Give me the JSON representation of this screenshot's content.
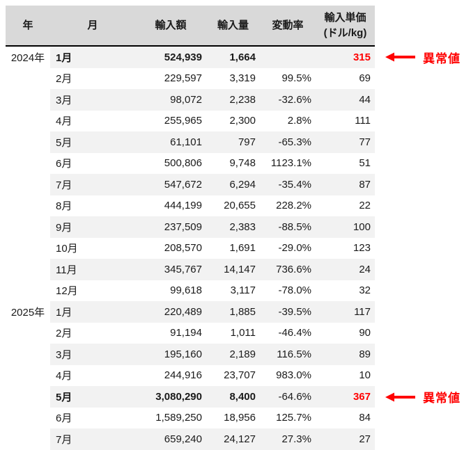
{
  "table": {
    "columns": [
      {
        "label": "年"
      },
      {
        "label": "月"
      },
      {
        "label": "輸入額"
      },
      {
        "label": "輸入量"
      },
      {
        "label": "変動率"
      },
      {
        "label": "輸入単価",
        "label_line2": "(ドル/kg)"
      }
    ],
    "rows": [
      {
        "year": "2024年",
        "month": "1月",
        "value": "524,939",
        "quantity": "1,664",
        "change": "",
        "unit_price": "315",
        "anomaly": true
      },
      {
        "year": "",
        "month": "2月",
        "value": "229,597",
        "quantity": "3,319",
        "change": "99.5%",
        "unit_price": "69",
        "anomaly": false
      },
      {
        "year": "",
        "month": "3月",
        "value": "98,072",
        "quantity": "2,238",
        "change": "-32.6%",
        "unit_price": "44",
        "anomaly": false
      },
      {
        "year": "",
        "month": "4月",
        "value": "255,965",
        "quantity": "2,300",
        "change": "2.8%",
        "unit_price": "111",
        "anomaly": false
      },
      {
        "year": "",
        "month": "5月",
        "value": "61,101",
        "quantity": "797",
        "change": "-65.3%",
        "unit_price": "77",
        "anomaly": false
      },
      {
        "year": "",
        "month": "6月",
        "value": "500,806",
        "quantity": "9,748",
        "change": "1123.1%",
        "unit_price": "51",
        "anomaly": false
      },
      {
        "year": "",
        "month": "7月",
        "value": "547,672",
        "quantity": "6,294",
        "change": "-35.4%",
        "unit_price": "87",
        "anomaly": false
      },
      {
        "year": "",
        "month": "8月",
        "value": "444,199",
        "quantity": "20,655",
        "change": "228.2%",
        "unit_price": "22",
        "anomaly": false
      },
      {
        "year": "",
        "month": "9月",
        "value": "237,509",
        "quantity": "2,383",
        "change": "-88.5%",
        "unit_price": "100",
        "anomaly": false
      },
      {
        "year": "",
        "month": "10月",
        "value": "208,570",
        "quantity": "1,691",
        "change": "-29.0%",
        "unit_price": "123",
        "anomaly": false
      },
      {
        "year": "",
        "month": "11月",
        "value": "345,767",
        "quantity": "14,147",
        "change": "736.6%",
        "unit_price": "24",
        "anomaly": false
      },
      {
        "year": "",
        "month": "12月",
        "value": "99,618",
        "quantity": "3,117",
        "change": "-78.0%",
        "unit_price": "32",
        "anomaly": false
      },
      {
        "year": "2025年",
        "month": "1月",
        "value": "220,489",
        "quantity": "1,885",
        "change": "-39.5%",
        "unit_price": "117",
        "anomaly": false
      },
      {
        "year": "",
        "month": "2月",
        "value": "91,194",
        "quantity": "1,011",
        "change": "-46.4%",
        "unit_price": "90",
        "anomaly": false
      },
      {
        "year": "",
        "month": "3月",
        "value": "195,160",
        "quantity": "2,189",
        "change": "116.5%",
        "unit_price": "89",
        "anomaly": false
      },
      {
        "year": "",
        "month": "4月",
        "value": "244,916",
        "quantity": "23,707",
        "change": "983.0%",
        "unit_price": "10",
        "anomaly": false
      },
      {
        "year": "",
        "month": "5月",
        "value": "3,080,290",
        "quantity": "8,400",
        "change": "-64.6%",
        "unit_price": "367",
        "anomaly": true
      },
      {
        "year": "",
        "month": "6月",
        "value": "1,589,250",
        "quantity": "18,956",
        "change": "125.7%",
        "unit_price": "84",
        "anomaly": false
      },
      {
        "year": "",
        "month": "7月",
        "value": "659,240",
        "quantity": "24,127",
        "change": "27.3%",
        "unit_price": "27",
        "anomaly": false
      }
    ]
  },
  "annotations": {
    "label": "異常値",
    "row_indices": [
      0,
      16
    ]
  },
  "colors": {
    "header_bg": "#d9d9d9",
    "alt_row_bg": "#f2f2f2",
    "anomaly_red": "#ff0000",
    "border": "#000000",
    "text": "#1a1a1a"
  },
  "chart_data": {
    "type": "table",
    "columns": [
      "年",
      "月",
      "輸入額",
      "輸入量",
      "変動率",
      "輸入単価(ドル/kg)"
    ],
    "rows": [
      [
        2024,
        1,
        524939,
        1664,
        null,
        315
      ],
      [
        null,
        2,
        229597,
        3319,
        "99.5%",
        69
      ],
      [
        null,
        3,
        98072,
        2238,
        "-32.6%",
        44
      ],
      [
        null,
        4,
        255965,
        2300,
        "2.8%",
        111
      ],
      [
        null,
        5,
        61101,
        797,
        "-65.3%",
        77
      ],
      [
        null,
        6,
        500806,
        9748,
        "1123.1%",
        51
      ],
      [
        null,
        7,
        547672,
        6294,
        "-35.4%",
        87
      ],
      [
        null,
        8,
        444199,
        20655,
        "228.2%",
        22
      ],
      [
        null,
        9,
        237509,
        2383,
        "-88.5%",
        100
      ],
      [
        null,
        10,
        208570,
        1691,
        "-29.0%",
        123
      ],
      [
        null,
        11,
        345767,
        14147,
        "736.6%",
        24
      ],
      [
        null,
        12,
        99618,
        3117,
        "-78.0%",
        32
      ],
      [
        2025,
        1,
        220489,
        1885,
        "-39.5%",
        117
      ],
      [
        null,
        2,
        91194,
        1011,
        "-46.4%",
        90
      ],
      [
        null,
        3,
        195160,
        2189,
        "116.5%",
        89
      ],
      [
        null,
        4,
        244916,
        23707,
        "983.0%",
        10
      ],
      [
        2025,
        5,
        3080290,
        8400,
        "-64.6%",
        367
      ],
      [
        null,
        6,
        1589250,
        18956,
        "125.7%",
        84
      ],
      [
        null,
        7,
        659240,
        24127,
        "27.3%",
        27
      ]
    ],
    "annotations": [
      {
        "label": "異常値",
        "target_row": "2024年1月",
        "anomalous_unit_price": 315
      },
      {
        "label": "異常値",
        "target_row": "2025年5月",
        "anomalous_unit_price": 367
      }
    ]
  }
}
